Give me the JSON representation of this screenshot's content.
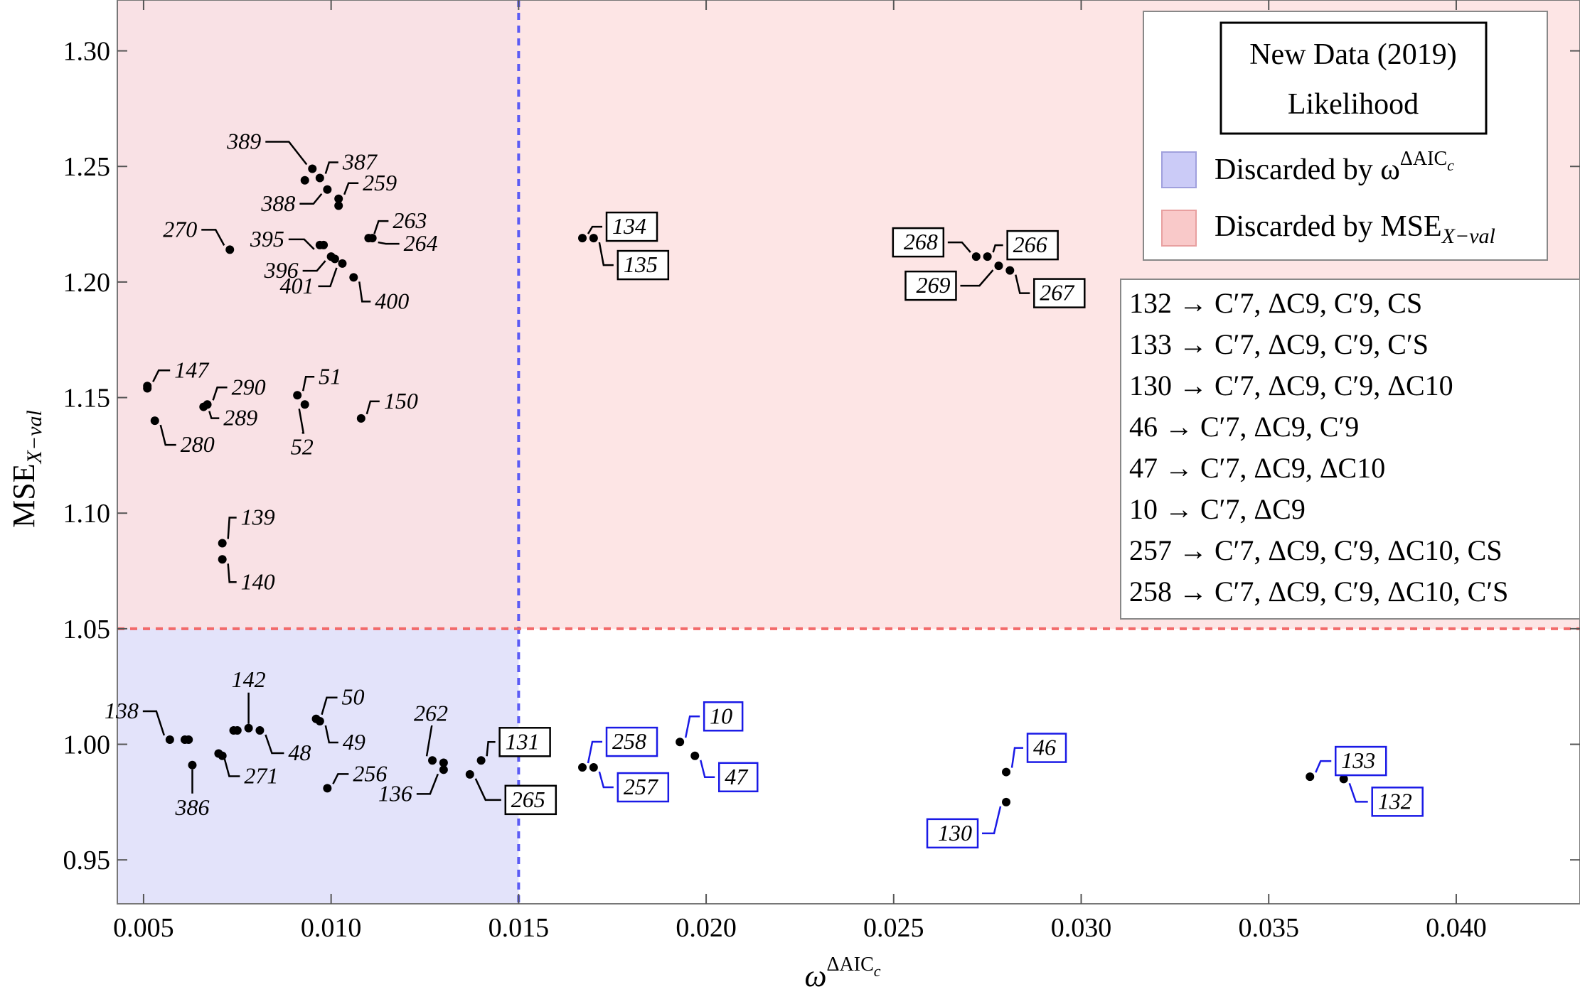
{
  "chart_data": {
    "type": "scatter",
    "title": "New Data (2019)",
    "subtitle": "Likelihood",
    "xlabel": "ω",
    "xlabel_sup": "ΔAIC",
    "xlabel_sup_sub": "c",
    "ylabel": "MSE",
    "ylabel_sub": "X−val",
    "xlim": [
      0.0043,
      0.0433
    ],
    "ylim": [
      0.931,
      1.322
    ],
    "x_ticks": [
      "0.005",
      "0.010",
      "0.015",
      "0.020",
      "0.025",
      "0.030",
      "0.035",
      "0.040"
    ],
    "y_ticks": [
      "0.95",
      "1.00",
      "1.05",
      "1.10",
      "1.15",
      "1.20",
      "1.25",
      "1.30"
    ],
    "thresholds": {
      "x": 0.015,
      "y": 1.05
    },
    "regions": [
      {
        "name": "Discarded by ω^ΔAICc",
        "color": "#e3e3fa"
      },
      {
        "name": "Discarded by MSE X-val",
        "color": "#fde0e0"
      }
    ],
    "legend": {
      "title": "New Data (2019)",
      "subtitle": "Likelihood",
      "items": [
        {
          "label": "Discarded by ω",
          "sup": "ΔAIC",
          "sup_sub": "c",
          "color": "#cbcbf7"
        },
        {
          "label": "Discarded by MSE",
          "sub": "X−val",
          "color": "#f9c9c9"
        }
      ]
    },
    "points": [
      {
        "id": "389",
        "x": 0.0095,
        "y": 1.249,
        "style": "plain"
      },
      {
        "id": "387",
        "x": 0.0097,
        "y": 1.245,
        "style": "plain"
      },
      {
        "id": "259",
        "x": 0.0102,
        "y": 1.236,
        "style": "plain"
      },
      {
        "id": "388",
        "x": 0.0099,
        "y": 1.24,
        "style": "plain"
      },
      {
        "id": "263",
        "x": 0.011,
        "y": 1.219,
        "style": "plain"
      },
      {
        "id": "264",
        "x": 0.0111,
        "y": 1.219,
        "style": "plain"
      },
      {
        "id": "270",
        "x": 0.0073,
        "y": 1.214,
        "style": "plain"
      },
      {
        "id": "395",
        "x": 0.0097,
        "y": 1.216,
        "style": "plain"
      },
      {
        "id": "396",
        "x": 0.01,
        "y": 1.211,
        "style": "plain"
      },
      {
        "id": "401",
        "x": 0.0103,
        "y": 1.208,
        "style": "plain"
      },
      {
        "id": "400",
        "x": 0.0106,
        "y": 1.202,
        "style": "plain"
      },
      {
        "id": "147",
        "x": 0.0051,
        "y": 1.155,
        "style": "plain"
      },
      {
        "id": "290",
        "x": 0.0067,
        "y": 1.147,
        "style": "plain"
      },
      {
        "id": "289",
        "x": 0.0066,
        "y": 1.146,
        "style": "plain"
      },
      {
        "id": "280",
        "x": 0.0053,
        "y": 1.14,
        "style": "plain"
      },
      {
        "id": "51",
        "x": 0.0091,
        "y": 1.151,
        "style": "plain"
      },
      {
        "id": "52",
        "x": 0.0093,
        "y": 1.147,
        "style": "plain"
      },
      {
        "id": "150",
        "x": 0.0108,
        "y": 1.141,
        "style": "plain"
      },
      {
        "id": "139",
        "x": 0.0071,
        "y": 1.087,
        "style": "plain"
      },
      {
        "id": "140",
        "x": 0.0071,
        "y": 1.08,
        "style": "plain"
      },
      {
        "id": "134",
        "x": 0.0167,
        "y": 1.219,
        "style": "boxed"
      },
      {
        "id": "135",
        "x": 0.017,
        "y": 1.219,
        "style": "boxed"
      },
      {
        "id": "268",
        "x": 0.0272,
        "y": 1.211,
        "style": "boxed"
      },
      {
        "id": "266",
        "x": 0.0275,
        "y": 1.211,
        "style": "boxed"
      },
      {
        "id": "269",
        "x": 0.0278,
        "y": 1.207,
        "style": "boxed"
      },
      {
        "id": "267",
        "x": 0.0281,
        "y": 1.205,
        "style": "boxed"
      },
      {
        "id": "138",
        "x": 0.0057,
        "y": 1.002,
        "style": "plain"
      },
      {
        "id": "386",
        "x": 0.0063,
        "y": 0.991,
        "style": "plain"
      },
      {
        "id": "142",
        "x": 0.0078,
        "y": 1.007,
        "style": "plain"
      },
      {
        "id": "271",
        "x": 0.007,
        "y": 0.996,
        "style": "plain"
      },
      {
        "id": "48",
        "x": 0.0081,
        "y": 1.006,
        "style": "plain"
      },
      {
        "id": "50",
        "x": 0.0096,
        "y": 1.011,
        "style": "plain"
      },
      {
        "id": "49",
        "x": 0.0097,
        "y": 1.01,
        "style": "plain"
      },
      {
        "id": "256",
        "x": 0.0099,
        "y": 0.981,
        "style": "plain"
      },
      {
        "id": "262",
        "x": 0.0127,
        "y": 0.993,
        "style": "plain"
      },
      {
        "id": "136",
        "x": 0.013,
        "y": 0.989,
        "style": "plain"
      },
      {
        "id": "131",
        "x": 0.014,
        "y": 0.993,
        "style": "boxed"
      },
      {
        "id": "265",
        "x": 0.0137,
        "y": 0.987,
        "style": "boxed"
      },
      {
        "id": "258",
        "x": 0.0167,
        "y": 0.99,
        "style": "blue"
      },
      {
        "id": "257",
        "x": 0.017,
        "y": 0.99,
        "style": "blue"
      },
      {
        "id": "10",
        "x": 0.0193,
        "y": 1.001,
        "style": "blue"
      },
      {
        "id": "47",
        "x": 0.0197,
        "y": 0.995,
        "style": "blue"
      },
      {
        "id": "46",
        "x": 0.028,
        "y": 0.988,
        "style": "blue"
      },
      {
        "id": "130",
        "x": 0.028,
        "y": 0.975,
        "style": "blue"
      },
      {
        "id": "133",
        "x": 0.0361,
        "y": 0.986,
        "style": "blue"
      },
      {
        "id": "132",
        "x": 0.037,
        "y": 0.985,
        "style": "blue"
      }
    ],
    "extra_points": [
      {
        "x": 0.0061,
        "y": 1.002
      },
      {
        "x": 0.0062,
        "y": 1.002
      },
      {
        "x": 0.0071,
        "y": 0.995
      },
      {
        "x": 0.0075,
        "y": 1.006
      },
      {
        "x": 0.0074,
        "y": 1.006
      },
      {
        "x": 0.0093,
        "y": 1.244
      },
      {
        "x": 0.0102,
        "y": 1.233
      },
      {
        "x": 0.0098,
        "y": 1.216
      },
      {
        "x": 0.0101,
        "y": 1.21
      },
      {
        "x": 0.0051,
        "y": 1.154
      },
      {
        "x": 0.013,
        "y": 0.992
      }
    ],
    "models": [
      {
        "id": "132",
        "arrow": "→",
        "terms": "C′7, ΔC9, C′9, CS"
      },
      {
        "id": "133",
        "arrow": "→",
        "terms": "C′7, ΔC9, C′9, C′S"
      },
      {
        "id": "130",
        "arrow": "→",
        "terms": "C′7, ΔC9, C′9, ΔC10"
      },
      {
        "id": "46",
        "arrow": "→",
        "terms": "C′7, ΔC9, C′9"
      },
      {
        "id": "47",
        "arrow": "→",
        "terms": "C′7, ΔC9, ΔC10"
      },
      {
        "id": "10",
        "arrow": "→",
        "terms": "C′7, ΔC9"
      },
      {
        "id": "257",
        "arrow": "→",
        "terms": "C′7, ΔC9, C′9, ΔC10, CS"
      },
      {
        "id": "258",
        "arrow": "→",
        "terms": "C′7, ΔC9, C′9, ΔC10, C′S"
      }
    ],
    "colors": {
      "blue_region": "#e3e3fa",
      "red_region": "#fde0e0",
      "blue_line": "#5b5bf5",
      "red_line": "#f26a6a",
      "blue_label": "#1a1ae6",
      "point": "#000000"
    }
  }
}
